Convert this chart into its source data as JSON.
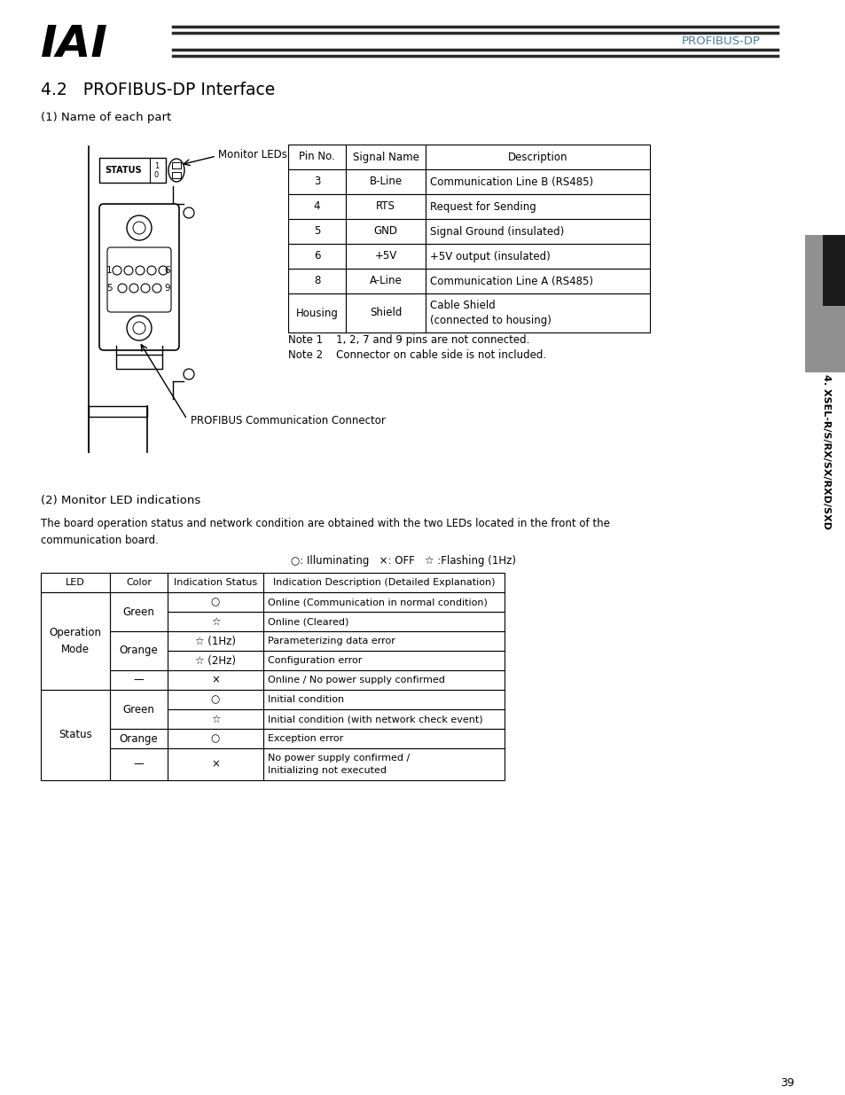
{
  "bg_color": "#ffffff",
  "page_number": "39",
  "header_text": "PROFIBUS-DP",
  "section_title": "4.2   PROFIBUS-DP Interface",
  "sub1_title": "(1) Name of each part",
  "monitor_leds_label": "Monitor LEDs",
  "profibus_connector_label": "PROFIBUS Communication Connector",
  "pin_table_headers": [
    "Pin No.",
    "Signal Name",
    "Description"
  ],
  "pin_table_rows": [
    [
      "3",
      "B-Line",
      "Communication Line B (RS485)"
    ],
    [
      "4",
      "RTS",
      "Request for Sending"
    ],
    [
      "5",
      "GND",
      "Signal Ground (insulated)"
    ],
    [
      "6",
      "+5V",
      "+5V output (insulated)"
    ],
    [
      "8",
      "A-Line",
      "Communication Line A (RS485)"
    ],
    [
      "Housing",
      "Shield",
      "Cable Shield\n(connected to housing)"
    ]
  ],
  "note1": "Note 1    1, 2, 7 and 9 pins are not connected.",
  "note2": "Note 2    Connector on cable side is not included.",
  "sub2_title": "(2) Monitor LED indications",
  "led_desc_text": "The board operation status and network condition are obtained with the two LEDs located in the front of the\ncommunication board.",
  "legend_text": "○: Illuminating   ×: OFF   ☆ :Flashing (1Hz)",
  "led_table_headers": [
    "LED",
    "Color",
    "Indication Status",
    "Indication Description (Detailed Explanation)"
  ],
  "led_table_rows": [
    [
      "Operation\nMode",
      "Green",
      "○",
      "Online (Communication in normal condition)"
    ],
    [
      "",
      "Green",
      "☆",
      "Online (Cleared)"
    ],
    [
      "",
      "Orange",
      "☆ (1Hz)",
      "Parameterizing data error"
    ],
    [
      "",
      "Orange",
      "☆ (2Hz)",
      "Configuration error"
    ],
    [
      "",
      "—",
      "×",
      "Online / No power supply confirmed"
    ],
    [
      "Status",
      "Green",
      "○",
      "Initial condition"
    ],
    [
      "",
      "Green",
      "☆",
      "Initial condition (with network check event)"
    ],
    [
      "",
      "Orange",
      "○",
      "Exception error"
    ],
    [
      "",
      "—",
      "×",
      "No power supply confirmed /\nInitializing not executed"
    ]
  ],
  "sidebar_text": "4. XSEL-R/S/RX/SX/RXD/SXD",
  "tab_dark_color": "#1a1a1a",
  "tab_light_color": "#909090",
  "header_line_color": "#2a2a2a",
  "header_profibus_color": "#4a7fa0"
}
